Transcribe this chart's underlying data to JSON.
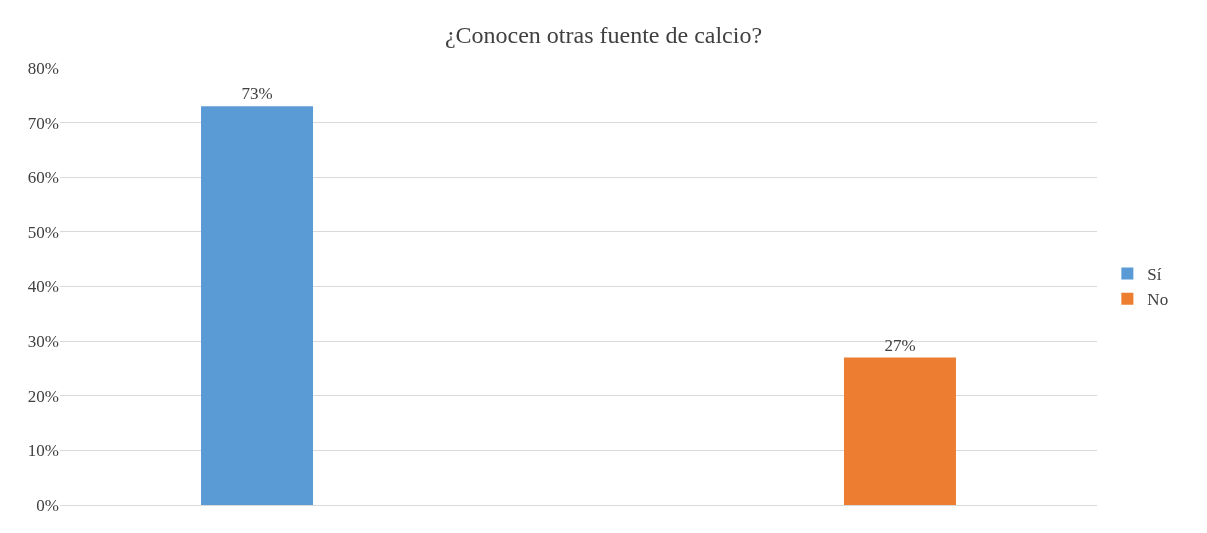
{
  "chart_data": {
    "type": "bar",
    "title": "¿Conocen otras fuente de calcio?",
    "categories": [
      null
    ],
    "series": [
      {
        "name": "Sí",
        "color": "#5b9bd5",
        "values": [
          73
        ],
        "value_labels": [
          "73%"
        ]
      },
      {
        "name": "No",
        "color": "#ed7d31",
        "values": [
          27
        ],
        "value_labels": [
          "27%"
        ]
      }
    ],
    "ylim": [
      0,
      80
    ],
    "yticks": [
      {
        "value": 0,
        "label": "0%"
      },
      {
        "value": 10,
        "label": "10%"
      },
      {
        "value": 20,
        "label": "20%"
      },
      {
        "value": 30,
        "label": "30%"
      },
      {
        "value": 40,
        "label": "40%"
      },
      {
        "value": 50,
        "label": "50%"
      },
      {
        "value": 60,
        "label": "60%"
      },
      {
        "value": 70,
        "label": "70%"
      },
      {
        "value": 80,
        "label": "80%"
      }
    ],
    "grid": "y",
    "legend": "right"
  }
}
